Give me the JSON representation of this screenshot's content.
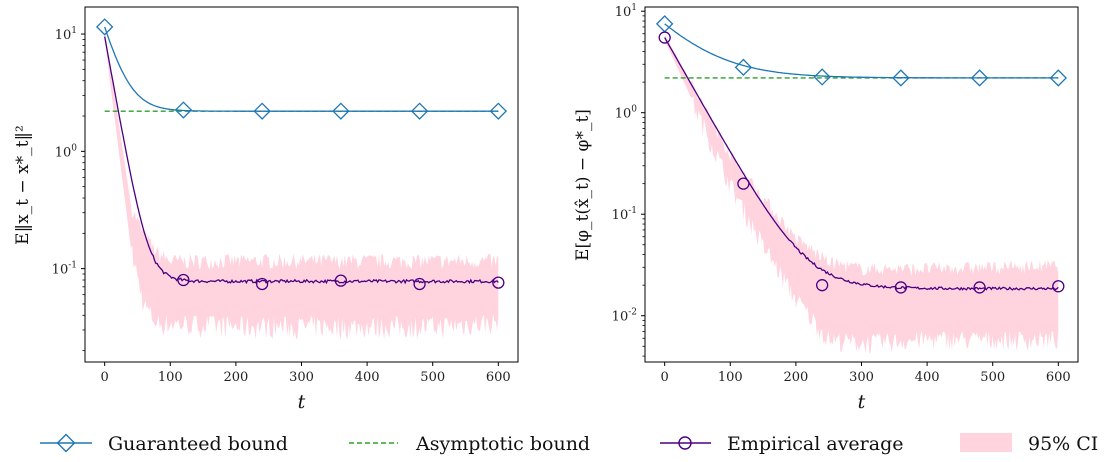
{
  "colors": {
    "guaranteed": "#1f77b4",
    "asymptotic": "#2ca02c",
    "empirical": "#4b0082",
    "ci_fill": "#ffd4df"
  },
  "legend": {
    "guaranteed": "Guaranteed bound",
    "asymptotic": "Asymptotic bound",
    "empirical": "Empirical average",
    "ci": "95% CI",
    "placement": "bottom"
  },
  "chart_data": [
    {
      "type": "line",
      "yscale": "log",
      "xlabel": "t",
      "ylabel": "E‖x_t − x*_t‖²",
      "xlim": [
        -30,
        630
      ],
      "ylim": [
        0.016,
        17
      ],
      "xticks": [
        0,
        100,
        200,
        300,
        400,
        500,
        600
      ],
      "xtick_labels": [
        "0",
        "100",
        "200",
        "300",
        "400",
        "500",
        "600"
      ],
      "yticks": [
        0.1,
        1,
        10
      ],
      "ytick_labels": [
        "10^-1",
        "10^0",
        "10^1"
      ],
      "series": [
        {
          "name": "Guaranteed bound",
          "style": "solid-diamond",
          "t0": 0,
          "y0": 11.5,
          "yinf": 2.2,
          "tau": 21,
          "markers_x": [
            0,
            120,
            240,
            360,
            480,
            600
          ],
          "markers_y": [
            11.5,
            2.25,
            2.2,
            2.2,
            2.2,
            2.2
          ]
        },
        {
          "name": "Asymptotic bound",
          "style": "dashed",
          "x": [
            0,
            600
          ],
          "y": [
            2.2,
            2.2
          ]
        },
        {
          "name": "Empirical average",
          "style": "solid-circle",
          "t0": 0,
          "y0": 9.5,
          "yinf": 0.078,
          "tau": 14,
          "markers_x": [
            120,
            240,
            360,
            480,
            600
          ],
          "markers_y": [
            0.08,
            0.074,
            0.079,
            0.074,
            0.076
          ]
        },
        {
          "name": "95% CI",
          "style": "band",
          "x": [
            0,
            40,
            60,
            80,
            100,
            200,
            300,
            400,
            500,
            600
          ],
          "lower": [
            9.0,
            0.15,
            0.05,
            0.035,
            0.035,
            0.033,
            0.033,
            0.033,
            0.033,
            0.036
          ],
          "upper": [
            11.0,
            0.35,
            0.2,
            0.14,
            0.12,
            0.12,
            0.12,
            0.12,
            0.12,
            0.12
          ]
        }
      ]
    },
    {
      "type": "line",
      "yscale": "log",
      "xlabel": "t",
      "ylabel": "E[φ_t(x̂_t) − φ*_t]",
      "xlim": [
        -30,
        630
      ],
      "ylim": [
        0.0035,
        11
      ],
      "xticks": [
        0,
        100,
        200,
        300,
        400,
        500,
        600
      ],
      "xtick_labels": [
        "0",
        "100",
        "200",
        "300",
        "400",
        "500",
        "600"
      ],
      "yticks": [
        0.01,
        0.1,
        1,
        10
      ],
      "ytick_labels": [
        "10^-2",
        "10^-1",
        "10^0",
        "10^1"
      ],
      "series": [
        {
          "name": "Guaranteed bound",
          "style": "solid-diamond",
          "t0": 0,
          "y0": 7.5,
          "yinf": 2.2,
          "tau": 60,
          "markers_x": [
            0,
            120,
            240,
            360,
            480,
            600
          ],
          "markers_y": [
            7.5,
            2.8,
            2.25,
            2.2,
            2.2,
            2.2
          ]
        },
        {
          "name": "Asymptotic bound",
          "style": "dashed",
          "x": [
            0,
            600
          ],
          "y": [
            2.2,
            2.2
          ]
        },
        {
          "name": "Empirical average",
          "style": "solid-circle",
          "t0": 0,
          "y0": 5.5,
          "yinf": 0.0185,
          "tau": 38,
          "markers_x": [
            0,
            120,
            240,
            360,
            480,
            600
          ],
          "markers_y": [
            5.5,
            0.2,
            0.02,
            0.019,
            0.019,
            0.0195
          ]
        },
        {
          "name": "95% CI",
          "style": "band",
          "x": [
            0,
            100,
            150,
            200,
            250,
            300,
            400,
            500,
            600
          ],
          "lower": [
            5.2,
            0.2,
            0.05,
            0.015,
            0.006,
            0.0055,
            0.006,
            0.006,
            0.006
          ],
          "upper": [
            5.9,
            0.4,
            0.15,
            0.06,
            0.035,
            0.03,
            0.03,
            0.031,
            0.032
          ]
        }
      ]
    }
  ]
}
